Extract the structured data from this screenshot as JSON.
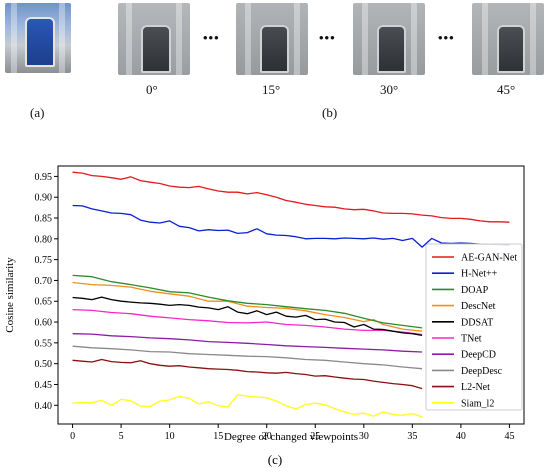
{
  "top": {
    "panel_a_label": "(a)",
    "panel_b_label": "(b)",
    "panel_c_label": "(c)",
    "angles": [
      "0°",
      "15°",
      "30°",
      "45°"
    ],
    "ellipsis": "•••"
  },
  "chart_data": {
    "type": "line",
    "xlabel": "Degree of changed viewpoints",
    "ylabel": "Cosine similarity",
    "xlim": [
      -1.5,
      46.5
    ],
    "ylim": [
      0.355,
      0.975
    ],
    "xticks": [
      0,
      5,
      10,
      15,
      20,
      25,
      30,
      35,
      40,
      45
    ],
    "yticks": [
      0.4,
      0.45,
      0.5,
      0.55,
      0.6,
      0.65,
      0.7,
      0.75,
      0.8,
      0.85,
      0.9,
      0.95
    ],
    "grid": false,
    "legend_position": "right",
    "series": [
      {
        "name": "AE-GAN-Net",
        "color": "#e41a1c",
        "x": [
          0,
          1,
          2,
          3,
          4,
          5,
          6,
          7,
          8,
          9,
          10,
          11,
          12,
          13,
          14,
          15,
          16,
          17,
          18,
          19,
          20,
          21,
          22,
          23,
          24,
          25,
          26,
          27,
          28,
          29,
          30,
          31,
          32,
          33,
          34,
          35,
          36,
          37,
          38,
          39,
          40,
          41,
          42,
          43,
          44,
          45
        ],
        "y": [
          0.96,
          0.958,
          0.952,
          0.95,
          0.947,
          0.943,
          0.949,
          0.94,
          0.936,
          0.933,
          0.927,
          0.924,
          0.923,
          0.926,
          0.92,
          0.915,
          0.912,
          0.912,
          0.908,
          0.911,
          0.906,
          0.9,
          0.892,
          0.888,
          0.883,
          0.88,
          0.877,
          0.876,
          0.872,
          0.87,
          0.871,
          0.867,
          0.862,
          0.861,
          0.861,
          0.86,
          0.857,
          0.855,
          0.851,
          0.849,
          0.849,
          0.847,
          0.843,
          0.841,
          0.841,
          0.84
        ]
      },
      {
        "name": "H-Net++",
        "color": "#0a1fd6",
        "x": [
          0,
          1,
          2,
          3,
          4,
          5,
          6,
          7,
          8,
          9,
          10,
          11,
          12,
          13,
          14,
          15,
          16,
          17,
          18,
          19,
          20,
          21,
          22,
          23,
          24,
          25,
          26,
          27,
          28,
          29,
          30,
          31,
          32,
          33,
          34,
          35,
          36,
          37,
          38,
          39,
          40,
          41,
          42,
          43,
          44,
          45
        ],
        "y": [
          0.88,
          0.879,
          0.872,
          0.867,
          0.862,
          0.861,
          0.858,
          0.845,
          0.84,
          0.838,
          0.843,
          0.83,
          0.827,
          0.819,
          0.822,
          0.82,
          0.821,
          0.813,
          0.815,
          0.824,
          0.812,
          0.809,
          0.808,
          0.805,
          0.8,
          0.801,
          0.801,
          0.8,
          0.802,
          0.801,
          0.8,
          0.802,
          0.799,
          0.801,
          0.796,
          0.801,
          0.78,
          0.801,
          0.79,
          0.789,
          0.79,
          0.789,
          0.787,
          0.787,
          0.786,
          0.785
        ]
      },
      {
        "name": "DOAP",
        "color": "#2a8c2a",
        "x": [
          0,
          2,
          4,
          6,
          8,
          10,
          12,
          14,
          16,
          18,
          20,
          22,
          24,
          26,
          28,
          30,
          32,
          34,
          36
        ],
        "y": [
          0.712,
          0.709,
          0.697,
          0.69,
          0.682,
          0.673,
          0.67,
          0.66,
          0.651,
          0.645,
          0.642,
          0.637,
          0.632,
          0.628,
          0.621,
          0.609,
          0.598,
          0.592,
          0.586
        ]
      },
      {
        "name": "DescNet",
        "color": "#f28c1f",
        "x": [
          0,
          2,
          4,
          6,
          8,
          10,
          12,
          14,
          16,
          18,
          20,
          22,
          24,
          26,
          28,
          30,
          31,
          32,
          34,
          36
        ],
        "y": [
          0.695,
          0.69,
          0.688,
          0.684,
          0.674,
          0.668,
          0.662,
          0.65,
          0.65,
          0.638,
          0.635,
          0.633,
          0.627,
          0.618,
          0.611,
          0.601,
          0.606,
          0.594,
          0.583,
          0.578
        ]
      },
      {
        "name": "DDSAT",
        "color": "#000000",
        "x": [
          0,
          1,
          2,
          3,
          4,
          5,
          6,
          7,
          8,
          9,
          10,
          11,
          12,
          13,
          14,
          15,
          16,
          17,
          18,
          19,
          20,
          21,
          22,
          23,
          24,
          25,
          26,
          27,
          28,
          29,
          30,
          31,
          32,
          33,
          34,
          35,
          36
        ],
        "y": [
          0.659,
          0.657,
          0.654,
          0.66,
          0.654,
          0.65,
          0.648,
          0.646,
          0.645,
          0.643,
          0.64,
          0.642,
          0.64,
          0.636,
          0.634,
          0.63,
          0.637,
          0.624,
          0.62,
          0.627,
          0.618,
          0.624,
          0.614,
          0.612,
          0.616,
          0.606,
          0.607,
          0.6,
          0.599,
          0.588,
          0.594,
          0.583,
          0.582,
          0.578,
          0.574,
          0.572,
          0.568
        ]
      },
      {
        "name": "TNet",
        "color": "#f527c9",
        "x": [
          0,
          2,
          4,
          6,
          8,
          10,
          12,
          14,
          16,
          18,
          20,
          22,
          24,
          26,
          28,
          30,
          32,
          34,
          36
        ],
        "y": [
          0.63,
          0.628,
          0.623,
          0.62,
          0.614,
          0.61,
          0.606,
          0.603,
          0.599,
          0.598,
          0.6,
          0.594,
          0.592,
          0.588,
          0.583,
          0.58,
          0.58,
          0.576,
          0.57
        ]
      },
      {
        "name": "DeepCD",
        "color": "#8c1aa6",
        "x": [
          0,
          2,
          4,
          6,
          8,
          10,
          12,
          14,
          16,
          18,
          20,
          22,
          24,
          26,
          28,
          30,
          32,
          34,
          36
        ],
        "y": [
          0.572,
          0.571,
          0.567,
          0.565,
          0.562,
          0.56,
          0.557,
          0.553,
          0.551,
          0.549,
          0.546,
          0.543,
          0.541,
          0.539,
          0.537,
          0.535,
          0.533,
          0.53,
          0.528
        ]
      },
      {
        "name": "DeepDesc",
        "color": "#8a8a8a",
        "x": [
          0,
          2,
          4,
          6,
          8,
          10,
          12,
          14,
          16,
          18,
          20,
          22,
          24,
          26,
          28,
          30,
          32,
          34,
          36
        ],
        "y": [
          0.542,
          0.538,
          0.536,
          0.533,
          0.529,
          0.528,
          0.524,
          0.522,
          0.52,
          0.518,
          0.517,
          0.514,
          0.51,
          0.508,
          0.504,
          0.5,
          0.497,
          0.492,
          0.488
        ]
      },
      {
        "name": "L2-Net",
        "color": "#8b1010",
        "x": [
          0,
          1,
          2,
          3,
          4,
          5,
          6,
          7,
          8,
          9,
          10,
          11,
          12,
          13,
          14,
          15,
          16,
          17,
          18,
          19,
          20,
          21,
          22,
          23,
          24,
          25,
          26,
          27,
          28,
          29,
          30,
          31,
          32,
          33,
          34,
          35,
          36
        ],
        "y": [
          0.508,
          0.506,
          0.504,
          0.51,
          0.505,
          0.503,
          0.502,
          0.507,
          0.5,
          0.496,
          0.494,
          0.495,
          0.492,
          0.49,
          0.488,
          0.487,
          0.486,
          0.484,
          0.481,
          0.48,
          0.478,
          0.477,
          0.479,
          0.476,
          0.474,
          0.47,
          0.471,
          0.468,
          0.465,
          0.463,
          0.462,
          0.458,
          0.455,
          0.452,
          0.45,
          0.447,
          0.44
        ]
      },
      {
        "name": "Siam_l2",
        "color": "#ffff1a",
        "x": [
          0,
          1,
          2,
          3,
          4,
          5,
          6,
          7,
          8,
          9,
          10,
          11,
          12,
          13,
          14,
          15,
          16,
          17,
          18,
          19,
          20,
          21,
          22,
          23,
          24,
          25,
          26,
          27,
          28,
          29,
          30,
          31,
          32,
          33,
          34,
          35,
          36
        ],
        "y": [
          0.405,
          0.407,
          0.406,
          0.412,
          0.4,
          0.414,
          0.411,
          0.398,
          0.397,
          0.41,
          0.413,
          0.421,
          0.417,
          0.403,
          0.408,
          0.399,
          0.396,
          0.425,
          0.422,
          0.42,
          0.418,
          0.41,
          0.399,
          0.391,
          0.402,
          0.405,
          0.401,
          0.392,
          0.384,
          0.378,
          0.381,
          0.374,
          0.384,
          0.378,
          0.376,
          0.38,
          0.372
        ]
      }
    ]
  }
}
